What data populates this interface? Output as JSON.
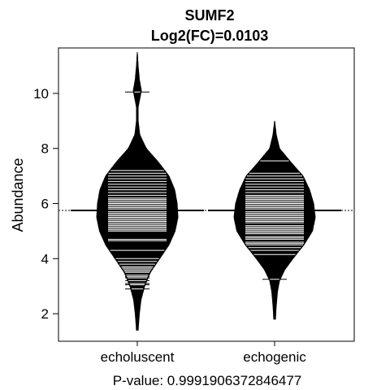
{
  "chart_data": {
    "type": "beanplot",
    "title": "SUMF2",
    "subtitle": "Log2(FC)=0.0103",
    "xlabel": "",
    "ylabel": "Abundance",
    "footer": "P-value: 0.9991906372846477",
    "categories": [
      "echoluscent",
      "echogenic"
    ],
    "ylim": [
      1.0,
      11.65
    ],
    "yticks": [
      2,
      4,
      6,
      8,
      10
    ],
    "overall_mean": 5.75,
    "series": [
      {
        "name": "echoluscent",
        "mean": 5.75,
        "range": [
          1.4,
          11.5
        ],
        "density": [
          [
            1.4,
            0.02
          ],
          [
            2.0,
            0.05
          ],
          [
            2.5,
            0.09
          ],
          [
            3.0,
            0.18
          ],
          [
            3.5,
            0.32
          ],
          [
            4.0,
            0.55
          ],
          [
            4.5,
            0.78
          ],
          [
            5.0,
            0.93
          ],
          [
            5.5,
            1.0
          ],
          [
            6.0,
            0.98
          ],
          [
            6.5,
            0.92
          ],
          [
            7.0,
            0.78
          ],
          [
            7.5,
            0.52
          ],
          [
            8.0,
            0.22
          ],
          [
            8.5,
            0.06
          ],
          [
            9.0,
            0.02
          ],
          [
            9.5,
            0.02
          ],
          [
            9.8,
            0.06
          ],
          [
            10.1,
            0.1
          ],
          [
            10.5,
            0.05
          ],
          [
            11.0,
            0.02
          ],
          [
            11.5,
            0.0
          ]
        ],
        "observations": [
          2.9,
          3.05,
          3.1,
          3.2,
          3.3,
          3.35,
          3.4,
          3.5,
          3.55,
          3.6,
          3.65,
          3.7,
          3.8,
          3.9,
          4.0,
          4.3,
          4.65,
          4.7,
          5.0,
          5.05,
          5.1,
          5.15,
          5.2,
          5.25,
          5.3,
          5.35,
          5.4,
          5.45,
          5.5,
          5.55,
          5.6,
          5.65,
          5.7,
          5.8,
          5.85,
          5.9,
          5.95,
          6.0,
          6.05,
          6.1,
          6.15,
          6.2,
          6.3,
          6.4,
          6.5,
          6.6,
          6.7,
          6.8,
          6.9,
          7.0,
          7.1,
          7.2,
          10.05
        ]
      },
      {
        "name": "echogenic",
        "mean": 5.75,
        "range": [
          1.8,
          9.0
        ],
        "density": [
          [
            1.8,
            0.02
          ],
          [
            2.3,
            0.04
          ],
          [
            2.8,
            0.07
          ],
          [
            3.2,
            0.12
          ],
          [
            3.6,
            0.25
          ],
          [
            4.0,
            0.45
          ],
          [
            4.5,
            0.72
          ],
          [
            5.0,
            0.93
          ],
          [
            5.5,
            1.0
          ],
          [
            6.0,
            0.96
          ],
          [
            6.5,
            0.86
          ],
          [
            7.0,
            0.7
          ],
          [
            7.5,
            0.4
          ],
          [
            8.0,
            0.12
          ],
          [
            8.5,
            0.04
          ],
          [
            9.0,
            0.0
          ]
        ],
        "observations": [
          3.25,
          4.15,
          4.3,
          4.4,
          4.5,
          4.55,
          4.6,
          4.7,
          4.75,
          4.8,
          4.9,
          4.95,
          5.0,
          5.05,
          5.1,
          5.15,
          5.2,
          5.3,
          5.35,
          5.4,
          5.45,
          5.5,
          5.55,
          5.6,
          5.65,
          5.7,
          5.8,
          5.85,
          5.9,
          5.95,
          6.0,
          6.05,
          6.1,
          6.15,
          6.2,
          6.25,
          6.3,
          6.4,
          6.5,
          6.6,
          6.7,
          6.8,
          6.9,
          7.0,
          7.1,
          7.55
        ]
      }
    ]
  }
}
